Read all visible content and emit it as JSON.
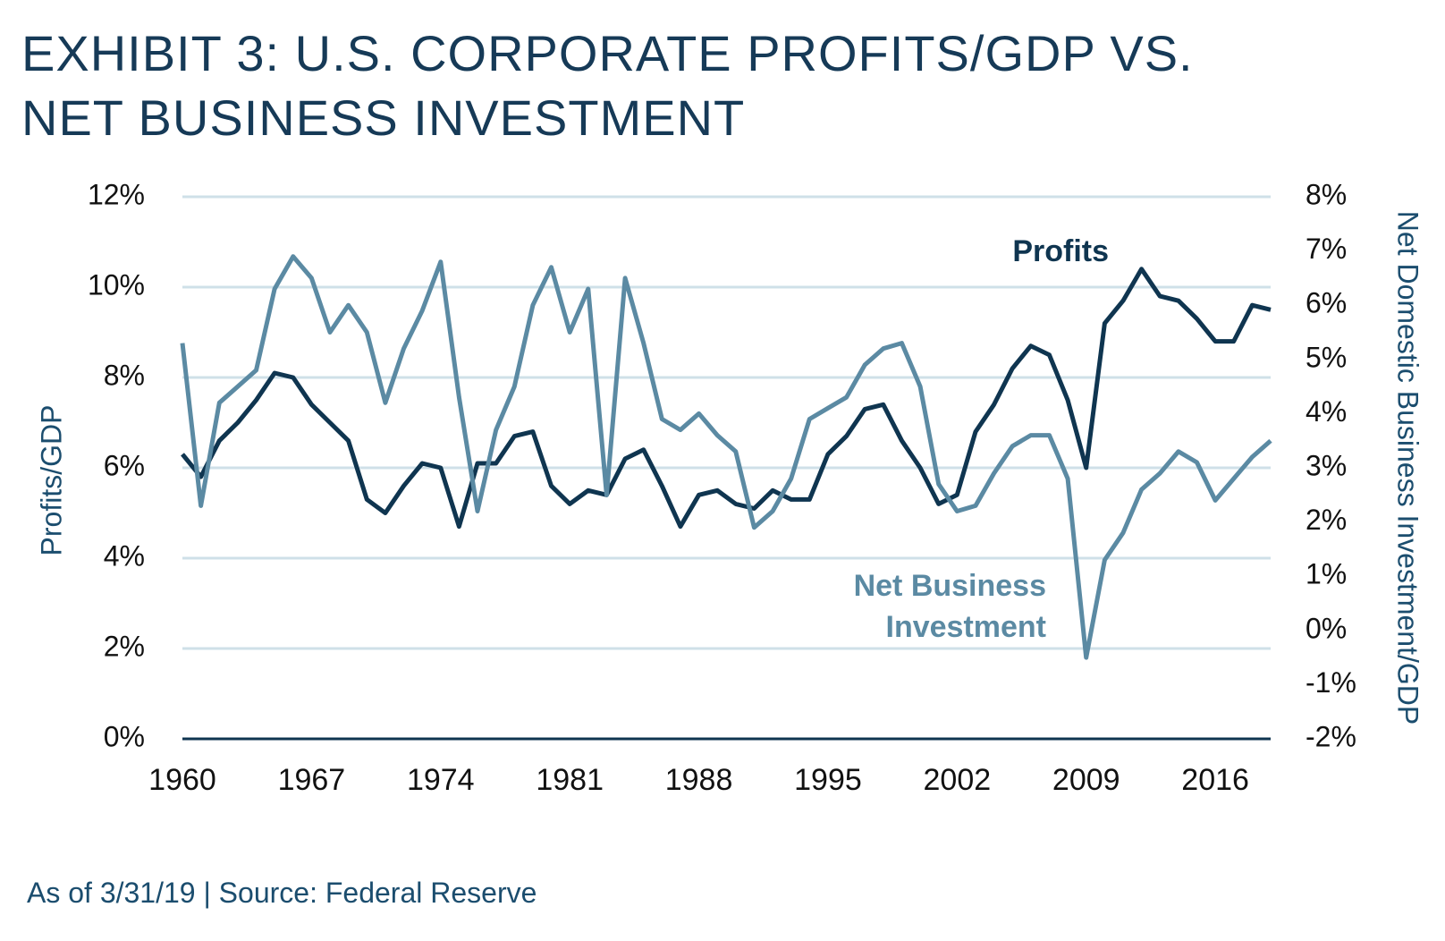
{
  "chart_data": {
    "type": "line",
    "title": "EXHIBIT 3: U.S. CORPORATE PROFITS/GDP VS. NET BUSINESS INVESTMENT",
    "note": "As of 3/31/19 | Source: Federal Reserve",
    "y_label": "Profits/GDP",
    "y2_label": "Net Domestic Business Investment/GDP",
    "x": [
      1960,
      1961,
      1962,
      1963,
      1964,
      1965,
      1966,
      1967,
      1968,
      1969,
      1970,
      1971,
      1972,
      1973,
      1974,
      1975,
      1976,
      1977,
      1978,
      1979,
      1980,
      1981,
      1982,
      1983,
      1984,
      1985,
      1986,
      1987,
      1988,
      1989,
      1990,
      1991,
      1992,
      1993,
      1994,
      1995,
      1996,
      1997,
      1998,
      1999,
      2000,
      2001,
      2002,
      2003,
      2004,
      2005,
      2006,
      2007,
      2008,
      2009,
      2010,
      2011,
      2012,
      2013,
      2014,
      2015,
      2016,
      2017,
      2018,
      2019
    ],
    "xlim": [
      1960,
      2019
    ],
    "xticks": [
      1960,
      1967,
      1974,
      1981,
      1988,
      1995,
      2002,
      2009,
      2016
    ],
    "ylim": [
      0,
      12
    ],
    "yticks": [
      {
        "value": 0,
        "label": "0%"
      },
      {
        "value": 2,
        "label": "2%"
      },
      {
        "value": 4,
        "label": "4%"
      },
      {
        "value": 6,
        "label": "6%"
      },
      {
        "value": 8,
        "label": "8%"
      },
      {
        "value": 10,
        "label": "10%"
      },
      {
        "value": 12,
        "label": "12%"
      }
    ],
    "y2lim": [
      -2,
      8
    ],
    "y2ticks": [
      {
        "value": -2,
        "label": "-2%"
      },
      {
        "value": -1,
        "label": "-1%"
      },
      {
        "value": 0,
        "label": "0%"
      },
      {
        "value": 1,
        "label": "1%"
      },
      {
        "value": 2,
        "label": "2%"
      },
      {
        "value": 3,
        "label": "3%"
      },
      {
        "value": 4,
        "label": "4%"
      },
      {
        "value": 5,
        "label": "5%"
      },
      {
        "value": 6,
        "label": "6%"
      },
      {
        "value": 7,
        "label": "7%"
      },
      {
        "value": 8,
        "label": "8%"
      }
    ],
    "grid": true,
    "series": [
      {
        "name": "Profits",
        "color": "#0f3550",
        "axis": "y",
        "values": [
          6.3,
          5.8,
          6.6,
          7.0,
          7.5,
          8.1,
          8.0,
          7.4,
          7.0,
          6.6,
          5.3,
          5.0,
          5.6,
          6.1,
          6.0,
          4.7,
          6.1,
          6.1,
          6.7,
          6.8,
          5.6,
          5.2,
          5.5,
          5.4,
          6.2,
          6.4,
          5.6,
          4.7,
          5.4,
          5.5,
          5.2,
          5.1,
          5.5,
          5.3,
          5.3,
          6.3,
          6.7,
          7.3,
          7.4,
          6.6,
          6.0,
          5.2,
          5.4,
          6.8,
          7.4,
          8.2,
          8.7,
          8.5,
          7.5,
          6.0,
          9.2,
          9.7,
          10.4,
          9.8,
          9.7,
          9.3,
          8.8,
          8.8,
          9.6,
          9.5
        ]
      },
      {
        "name": "Net Business Investment",
        "color": "#5b8aa3",
        "axis": "y2",
        "values": [
          5.3,
          2.3,
          4.2,
          4.5,
          4.8,
          6.3,
          6.9,
          6.5,
          5.5,
          6.0,
          5.5,
          4.2,
          5.2,
          5.9,
          6.8,
          4.3,
          2.2,
          3.7,
          4.5,
          6.0,
          6.7,
          5.5,
          6.3,
          2.5,
          6.5,
          5.3,
          3.9,
          3.7,
          4.0,
          3.6,
          3.3,
          1.9,
          2.2,
          2.8,
          3.9,
          4.1,
          4.3,
          4.9,
          5.2,
          5.3,
          4.5,
          2.7,
          2.2,
          2.3,
          2.9,
          3.4,
          3.6,
          3.6,
          2.8,
          -0.5,
          1.3,
          1.8,
          2.6,
          2.9,
          3.3,
          3.1,
          2.4,
          2.8,
          3.2,
          3.5
        ]
      }
    ]
  }
}
